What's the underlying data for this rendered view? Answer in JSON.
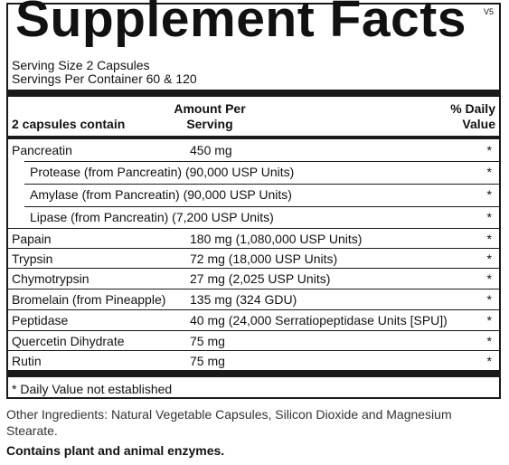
{
  "title": "Supplement Facts",
  "version": "V5",
  "serving_size": "Serving Size  2 Capsules",
  "servings_per_container": "Servings Per Container  60 & 120",
  "header": {
    "contain": "2 capsules contain",
    "amount_line1": "Amount Per",
    "amount_line2": "Serving",
    "dv_line1": "% Daily",
    "dv_line2": "Value"
  },
  "rows": [
    {
      "name": "Pancreatin",
      "amount": "450 mg",
      "dv": "*"
    },
    {
      "name": "Protease (from Pancreatin) (90,000 USP Units)",
      "amount": "",
      "dv": "*"
    },
    {
      "name": "Amylase (from Pancreatin) (90,000 USP Units)",
      "amount": "",
      "dv": "*"
    },
    {
      "name": "Lipase (from Pancreatin) (7,200 USP Units)",
      "amount": "",
      "dv": "*"
    },
    {
      "name": "Papain",
      "amount": "180 mg (1,080,000 USP Units)",
      "dv": "*"
    },
    {
      "name": "Trypsin",
      "amount": "72 mg (18,000 USP Units)",
      "dv": "*"
    },
    {
      "name": "Chymotrypsin",
      "amount": "27 mg (2,025 USP Units)",
      "dv": "*"
    },
    {
      "name": "Bromelain (from Pineapple)",
      "amount": "135 mg (324 GDU)",
      "dv": "*"
    },
    {
      "name": "Peptidase",
      "amount": "40 mg (24,000 Serratiopeptidase Units [SPU])",
      "dv": "*"
    },
    {
      "name": "Quercetin Dihydrate",
      "amount": "75 mg",
      "dv": "*"
    },
    {
      "name": "Rutin",
      "amount": "75 mg",
      "dv": "*"
    }
  ],
  "footnote": "* Daily Value not established",
  "other_ingredients": "Other Ingredients: Natural Vegetable Capsules, Silicon Dioxide and Magnesium Stearate.",
  "contains": "Contains plant and animal enzymes."
}
